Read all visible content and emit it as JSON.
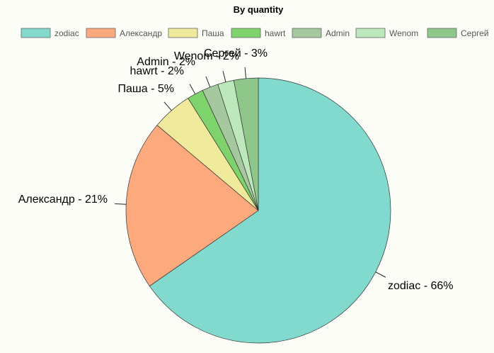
{
  "chart_data": {
    "type": "pie",
    "title": "By quantity",
    "legend_position": "top",
    "slices": [
      {
        "label": "zodiac",
        "percent": 66,
        "color": "#82d9ce",
        "display": "zodiac - 66%"
      },
      {
        "label": "Александр",
        "percent": 21,
        "color": "#fca97d",
        "display": "Александр - 21%"
      },
      {
        "label": "Паша",
        "percent": 5,
        "color": "#f0ea9c",
        "display": "Паша - 5%"
      },
      {
        "label": "hawrt",
        "percent": 2,
        "color": "#7fd36c",
        "display": "hawrt - 2%"
      },
      {
        "label": "Admin",
        "percent": 2,
        "color": "#a5c89e",
        "display": "Admin - 2%"
      },
      {
        "label": "Wenom",
        "percent": 2,
        "color": "#bde8bb",
        "display": "Wenom - 2%"
      },
      {
        "label": "Сергей",
        "percent": 3,
        "color": "#8fc68a",
        "display": "Сергей - 3%"
      }
    ]
  }
}
